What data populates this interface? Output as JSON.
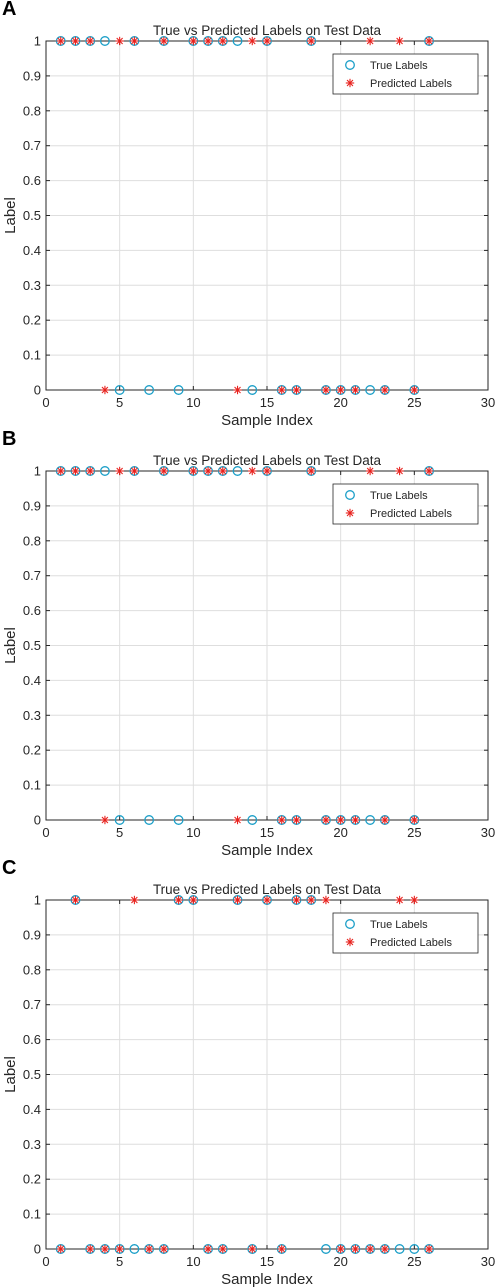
{
  "chart_data": [
    {
      "panel_label": "A",
      "type": "scatter",
      "title": "True vs Predicted Labels on Test Data",
      "xlabel": "Sample Index",
      "ylabel": "Label",
      "xlim": [
        0,
        30
      ],
      "ylim": [
        0,
        1
      ],
      "xticks": [
        "0",
        "5",
        "10",
        "15",
        "20",
        "25",
        "30"
      ],
      "yticks": [
        "0",
        "0.1",
        "0.2",
        "0.3",
        "0.4",
        "0.5",
        "0.6",
        "0.7",
        "0.8",
        "0.9",
        "1"
      ],
      "grid": true,
      "legend_position": "top-right",
      "series": [
        {
          "name": "True Labels",
          "marker": "circle",
          "color": "#1c9fc8",
          "x": [
            1,
            2,
            3,
            4,
            5,
            6,
            7,
            8,
            9,
            10,
            11,
            12,
            13,
            14,
            15,
            16,
            17,
            18,
            19,
            20,
            21,
            22,
            23,
            25,
            26
          ],
          "y": [
            1,
            1,
            1,
            1,
            0,
            1,
            0,
            1,
            0,
            1,
            1,
            1,
            1,
            0,
            1,
            0,
            0,
            1,
            0,
            0,
            0,
            0,
            0,
            0,
            1
          ]
        },
        {
          "name": "Predicted Labels",
          "marker": "star",
          "color": "#e8231f",
          "x": [
            1,
            2,
            3,
            4,
            5,
            6,
            8,
            10,
            11,
            12,
            13,
            14,
            15,
            16,
            17,
            18,
            19,
            20,
            21,
            22,
            23,
            24,
            25,
            26
          ],
          "y": [
            1,
            1,
            1,
            0,
            1,
            1,
            1,
            1,
            1,
            1,
            0,
            1,
            1,
            0,
            0,
            1,
            0,
            0,
            0,
            1,
            0,
            1,
            0,
            1
          ]
        }
      ]
    },
    {
      "panel_label": "B",
      "type": "scatter",
      "title": "True vs Predicted Labels on Test Data",
      "xlabel": "Sample Index",
      "ylabel": "Label",
      "xlim": [
        0,
        30
      ],
      "ylim": [
        0,
        1
      ],
      "xticks": [
        "0",
        "5",
        "10",
        "15",
        "20",
        "25",
        "30"
      ],
      "yticks": [
        "0",
        "0.1",
        "0.2",
        "0.3",
        "0.4",
        "0.5",
        "0.6",
        "0.7",
        "0.8",
        "0.9",
        "1"
      ],
      "grid": true,
      "legend_position": "top-right",
      "series": [
        {
          "name": "True Labels",
          "marker": "circle",
          "color": "#1c9fc8",
          "x": [
            1,
            2,
            3,
            4,
            5,
            6,
            7,
            8,
            9,
            10,
            11,
            12,
            13,
            14,
            15,
            16,
            17,
            18,
            19,
            20,
            21,
            22,
            23,
            25,
            26
          ],
          "y": [
            1,
            1,
            1,
            1,
            0,
            1,
            0,
            1,
            0,
            1,
            1,
            1,
            1,
            0,
            1,
            0,
            0,
            1,
            0,
            0,
            0,
            0,
            0,
            0,
            1
          ]
        },
        {
          "name": "Predicted Labels",
          "marker": "star",
          "color": "#e8231f",
          "x": [
            1,
            2,
            3,
            4,
            5,
            6,
            8,
            10,
            11,
            12,
            13,
            14,
            15,
            16,
            17,
            18,
            19,
            20,
            21,
            22,
            23,
            24,
            25,
            26
          ],
          "y": [
            1,
            1,
            1,
            0,
            1,
            1,
            1,
            1,
            1,
            1,
            0,
            1,
            1,
            0,
            0,
            1,
            0,
            0,
            0,
            1,
            0,
            1,
            0,
            1
          ]
        }
      ]
    },
    {
      "panel_label": "C",
      "type": "scatter",
      "title": "True vs Predicted Labels on Test Data",
      "xlabel": "Sample Index",
      "ylabel": "Label",
      "xlim": [
        0,
        30
      ],
      "ylim": [
        0,
        1
      ],
      "xticks": [
        "0",
        "5",
        "10",
        "15",
        "20",
        "25",
        "30"
      ],
      "yticks": [
        "0",
        "0.1",
        "0.2",
        "0.3",
        "0.4",
        "0.5",
        "0.6",
        "0.7",
        "0.8",
        "0.9",
        "1"
      ],
      "grid": true,
      "legend_position": "top-right",
      "series": [
        {
          "name": "True Labels",
          "marker": "circle",
          "color": "#1c9fc8",
          "x": [
            1,
            2,
            3,
            4,
            5,
            6,
            7,
            8,
            9,
            10,
            11,
            12,
            13,
            14,
            15,
            16,
            17,
            18,
            19,
            20,
            21,
            22,
            23,
            24,
            25,
            26
          ],
          "y": [
            0,
            1,
            0,
            0,
            0,
            0,
            0,
            0,
            1,
            1,
            0,
            0,
            1,
            0,
            1,
            0,
            1,
            1,
            0,
            0,
            0,
            0,
            0,
            0,
            0,
            0
          ]
        },
        {
          "name": "Predicted Labels",
          "marker": "star",
          "color": "#e8231f",
          "x": [
            1,
            2,
            3,
            4,
            5,
            6,
            7,
            8,
            9,
            10,
            11,
            12,
            13,
            14,
            15,
            16,
            17,
            18,
            19,
            20,
            21,
            22,
            23,
            24,
            25,
            26
          ],
          "y": [
            0,
            1,
            0,
            0,
            0,
            1,
            0,
            0,
            1,
            1,
            0,
            0,
            1,
            0,
            1,
            0,
            1,
            1,
            1,
            0,
            0,
            0,
            0,
            1,
            1,
            0
          ]
        }
      ]
    }
  ]
}
